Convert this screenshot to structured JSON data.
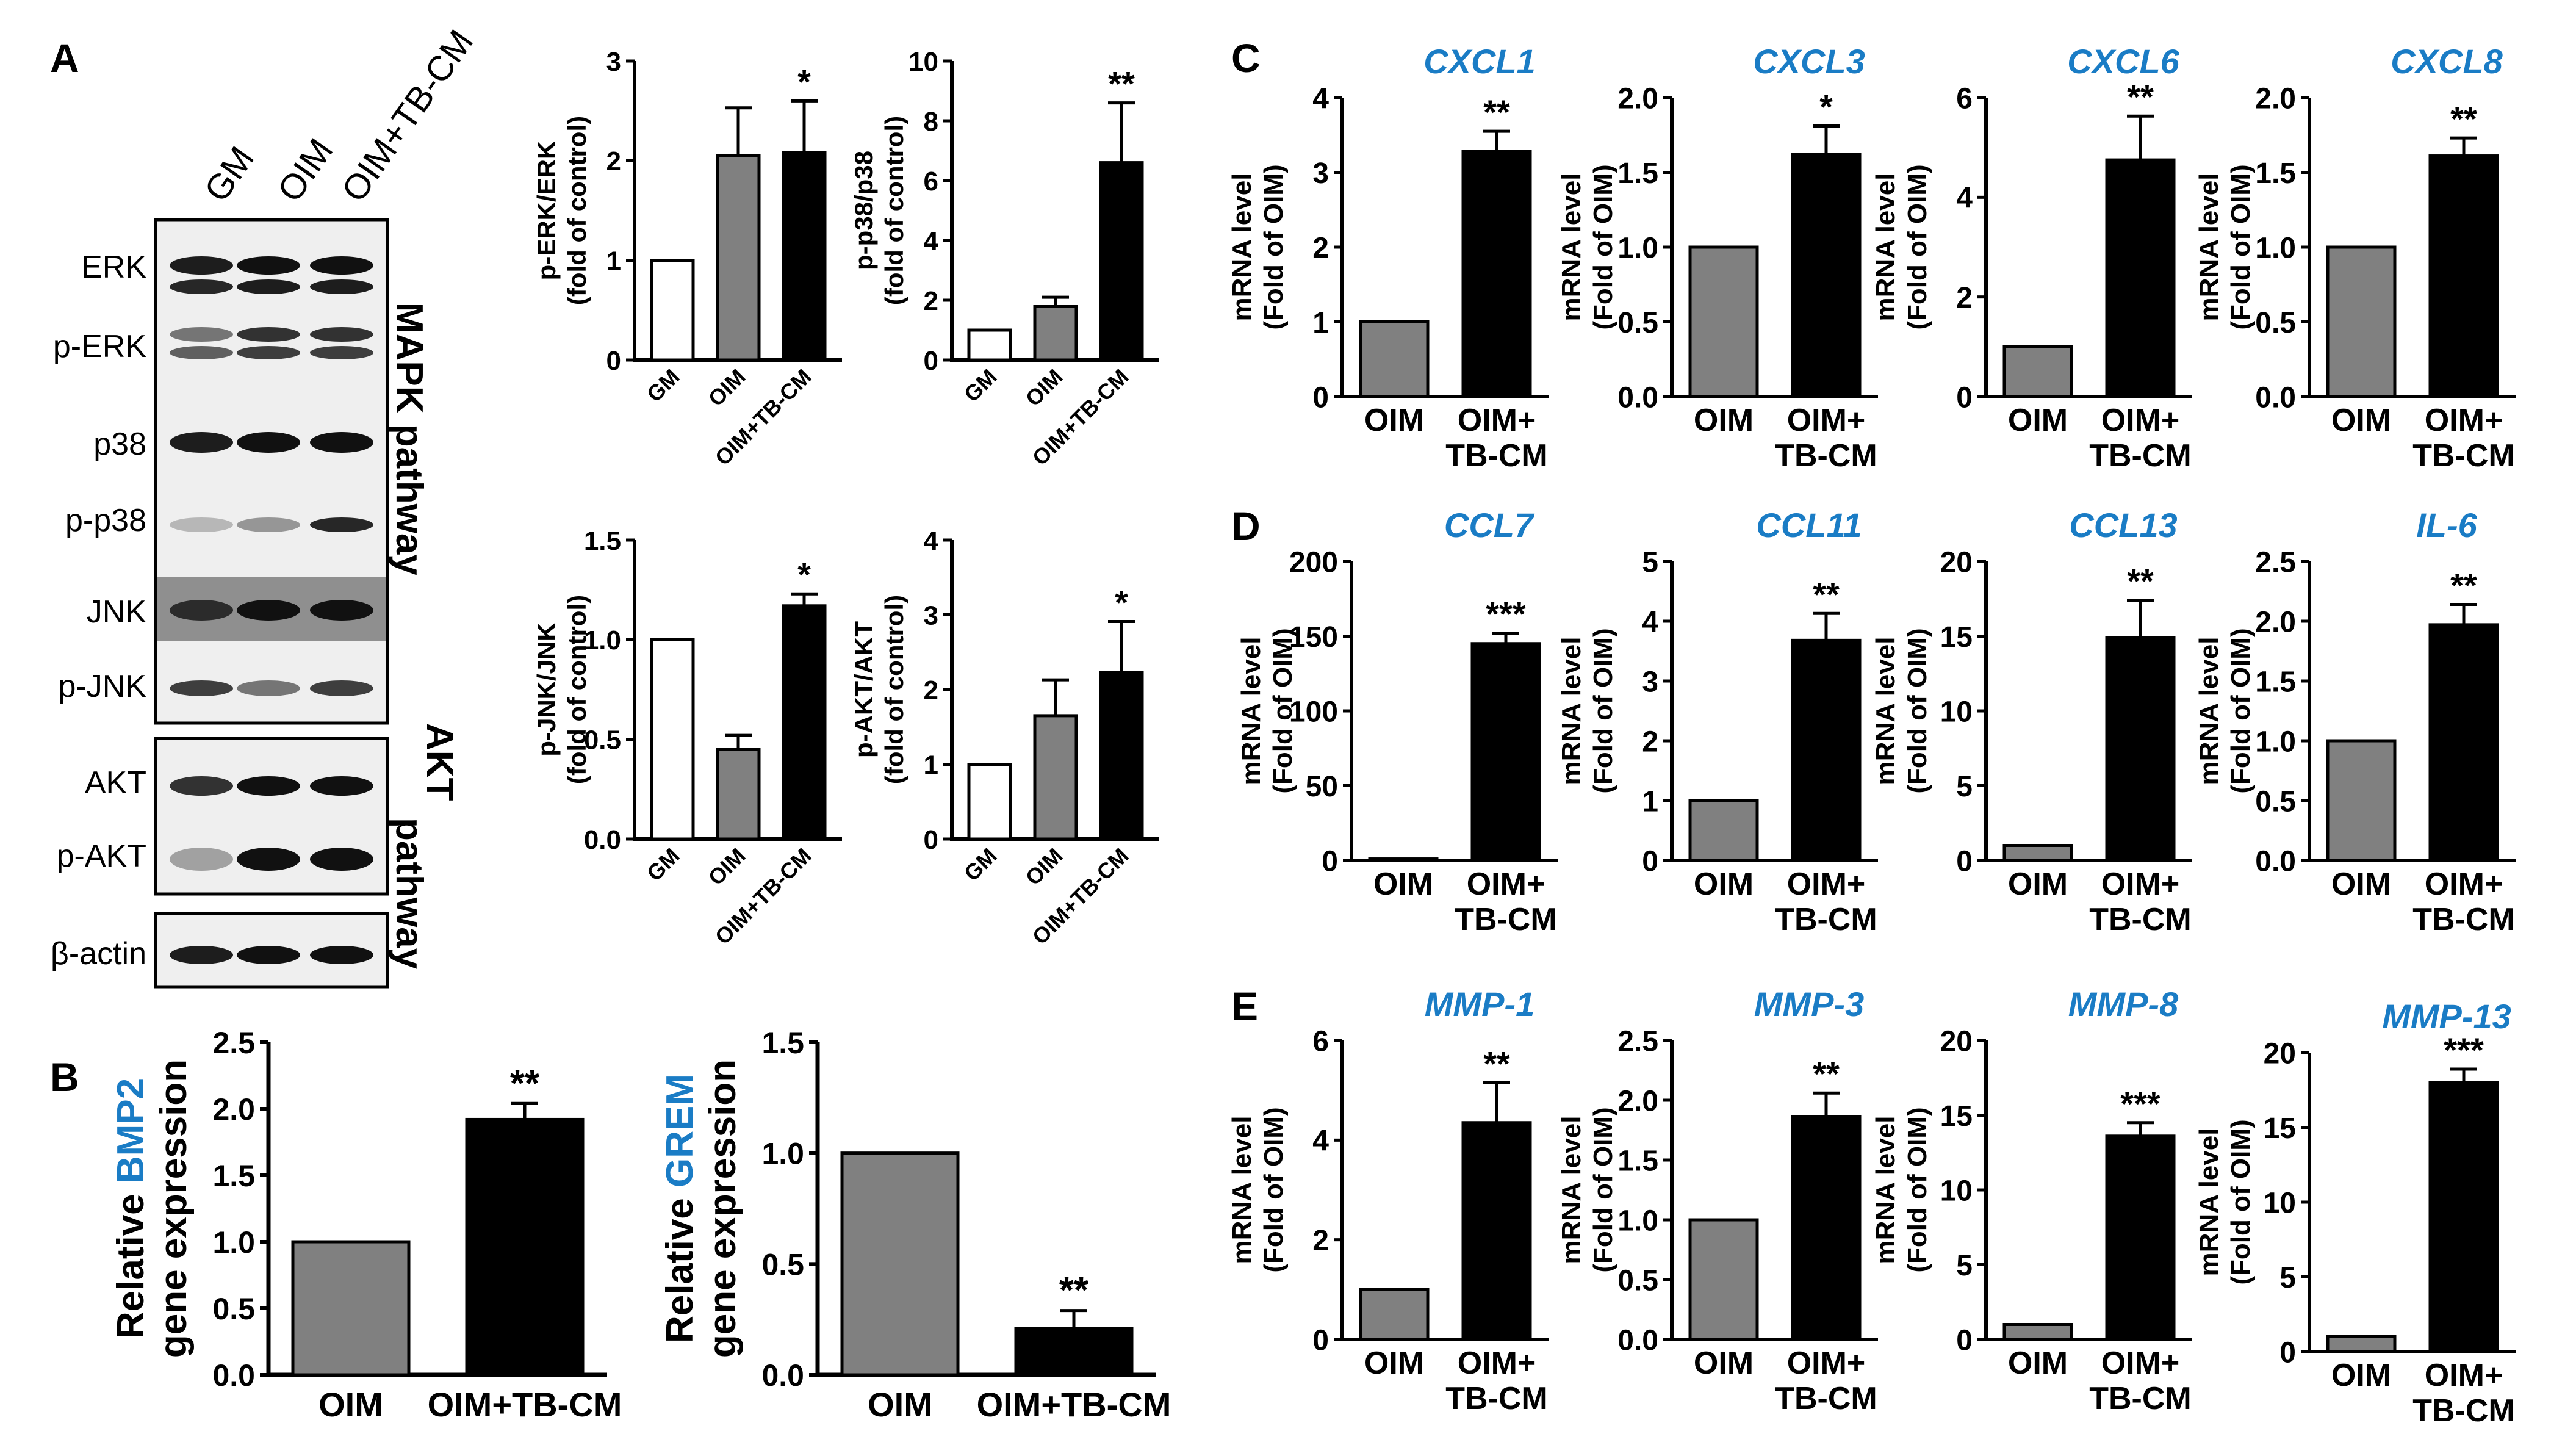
{
  "panels": {
    "A": "A",
    "B": "B",
    "C": "C",
    "D": "D",
    "E": "E"
  },
  "blot": {
    "lanes": [
      "GM",
      "OIM",
      "OIM+TB-CM"
    ],
    "bands": [
      "ERK",
      "p-ERK",
      "p38",
      "p-p38",
      "JNK",
      "p-JNK",
      "AKT",
      "p-AKT",
      "β-actin"
    ],
    "pathways": {
      "mapk": "MAPK pathway",
      "akt_line1": "AKT",
      "akt_line2": "pathway"
    }
  },
  "colors": {
    "GM": "#ffffff",
    "OIM": "#808080",
    "OIM+TB-CM": "#000000",
    "gene_title": "#1a7cc5"
  },
  "chart_data": [
    {
      "id": "A1",
      "type": "bar",
      "categories": [
        "GM",
        "OIM",
        "OIM+TB-CM"
      ],
      "values": [
        1.0,
        2.05,
        2.08
      ],
      "errors": [
        0,
        0.48,
        0.52
      ],
      "sig": [
        "",
        "",
        "*"
      ],
      "ylabel_lines": [
        "p-ERK/ERK",
        "(fold of control)"
      ],
      "ylim": [
        0,
        3
      ],
      "yticks": [
        0,
        1,
        2,
        3
      ],
      "tick_labels": [
        "0",
        "1",
        "2",
        "3"
      ],
      "fills": [
        "#ffffff",
        "#808080",
        "#000000"
      ],
      "rotated_x": true
    },
    {
      "id": "A2",
      "type": "bar",
      "categories": [
        "GM",
        "OIM",
        "OIM+TB-CM"
      ],
      "values": [
        1.0,
        1.8,
        6.6
      ],
      "errors": [
        0,
        0.3,
        2.0
      ],
      "sig": [
        "",
        "",
        "**"
      ],
      "ylabel_lines": [
        "p-p38/p38",
        "(fold of control)"
      ],
      "ylim": [
        0,
        10
      ],
      "yticks": [
        0,
        2,
        4,
        6,
        8,
        10
      ],
      "tick_labels": [
        "0",
        "2",
        "4",
        "6",
        "8",
        "10"
      ],
      "fills": [
        "#ffffff",
        "#808080",
        "#000000"
      ],
      "rotated_x": true
    },
    {
      "id": "A3",
      "type": "bar",
      "categories": [
        "GM",
        "OIM",
        "OIM+TB-CM"
      ],
      "values": [
        1.0,
        0.45,
        1.17
      ],
      "errors": [
        0,
        0.07,
        0.06
      ],
      "sig": [
        "",
        "",
        "*"
      ],
      "ylabel_lines": [
        "p-JNK/JNK",
        "(fold of control)"
      ],
      "ylim": [
        0,
        1.5
      ],
      "yticks": [
        0,
        0.5,
        1.0,
        1.5
      ],
      "tick_labels": [
        "0.0",
        "0.5",
        "1.0",
        "1.5"
      ],
      "fills": [
        "#ffffff",
        "#808080",
        "#000000"
      ],
      "rotated_x": true
    },
    {
      "id": "A4",
      "type": "bar",
      "categories": [
        "GM",
        "OIM",
        "OIM+TB-CM"
      ],
      "values": [
        1.0,
        1.65,
        2.23
      ],
      "errors": [
        0,
        0.48,
        0.68
      ],
      "sig": [
        "",
        "",
        "*"
      ],
      "ylabel_lines": [
        "p-AKT/AKT",
        "(fold of control)"
      ],
      "ylim": [
        0,
        4
      ],
      "yticks": [
        0,
        1,
        2,
        3,
        4
      ],
      "tick_labels": [
        "0",
        "1",
        "2",
        "3",
        "4"
      ],
      "fills": [
        "#ffffff",
        "#808080",
        "#000000"
      ],
      "rotated_x": true
    },
    {
      "id": "B1",
      "type": "bar",
      "categories": [
        "OIM",
        "OIM+TB-CM"
      ],
      "values": [
        1.0,
        1.92
      ],
      "errors": [
        0,
        0.12
      ],
      "sig": [
        "",
        "**"
      ],
      "ylabel_line1": [
        "Relative ",
        "BMP2"
      ],
      "ylabel_line2": "gene expression",
      "ylim": [
        0,
        2.5
      ],
      "yticks": [
        0,
        0.5,
        1.0,
        1.5,
        2.0,
        2.5
      ],
      "tick_labels": [
        "0.0",
        "0.5",
        "1.0",
        "1.5",
        "2.0",
        "2.5"
      ],
      "fills": [
        "#808080",
        "#000000"
      ]
    },
    {
      "id": "B2",
      "type": "bar",
      "categories": [
        "OIM",
        "OIM+TB-CM"
      ],
      "values": [
        1.0,
        0.21
      ],
      "errors": [
        0,
        0.08
      ],
      "sig": [
        "",
        "**"
      ],
      "ylabel_line1": [
        "Relative ",
        "GREM"
      ],
      "ylabel_line2": "gene expression",
      "ylim": [
        0,
        1.5
      ],
      "yticks": [
        0,
        0.5,
        1.0,
        1.5
      ],
      "tick_labels": [
        "0.0",
        "0.5",
        "1.0",
        "1.5"
      ],
      "fills": [
        "#808080",
        "#000000"
      ]
    },
    {
      "id": "C1",
      "type": "bar",
      "title": "CXCL1",
      "categories": [
        "OIM",
        "OIM+ TB-CM"
      ],
      "values": [
        1.0,
        3.28
      ],
      "errors": [
        0,
        0.27
      ],
      "sig": [
        "",
        "**"
      ],
      "ylabel_lines": [
        "mRNA level",
        "(Fold of OIM)"
      ],
      "ylim": [
        0,
        4
      ],
      "yticks": [
        0,
        1,
        2,
        3,
        4
      ],
      "tick_labels": [
        "0",
        "1",
        "2",
        "3",
        "4"
      ],
      "fills": [
        "#808080",
        "#000000"
      ]
    },
    {
      "id": "C2",
      "type": "bar",
      "title": "CXCL3",
      "categories": [
        "OIM",
        "OIM+ TB-CM"
      ],
      "values": [
        1.0,
        1.62
      ],
      "errors": [
        0,
        0.19
      ],
      "sig": [
        "",
        "*"
      ],
      "ylabel_lines": [
        "mRNA level",
        "(Fold of OIM)"
      ],
      "ylim": [
        0,
        2.0
      ],
      "yticks": [
        0,
        0.5,
        1.0,
        1.5,
        2.0
      ],
      "tick_labels": [
        "0.0",
        "0.5",
        "1.0",
        "1.5",
        "2.0"
      ],
      "fills": [
        "#808080",
        "#000000"
      ]
    },
    {
      "id": "C3",
      "type": "bar",
      "title": "CXCL6",
      "categories": [
        "OIM",
        "OIM+ TB-CM"
      ],
      "values": [
        1.0,
        4.75
      ],
      "errors": [
        0,
        0.88
      ],
      "sig": [
        "",
        "**"
      ],
      "ylabel_lines": [
        "mRNA level",
        "(Fold of OIM)"
      ],
      "ylim": [
        0,
        6
      ],
      "yticks": [
        0,
        2,
        4,
        6
      ],
      "tick_labels": [
        "0",
        "2",
        "4",
        "6"
      ],
      "fills": [
        "#808080",
        "#000000"
      ]
    },
    {
      "id": "C4",
      "type": "bar",
      "title": "CXCL8",
      "categories": [
        "OIM",
        "OIM+ TB-CM"
      ],
      "values": [
        1.0,
        1.61
      ],
      "errors": [
        0,
        0.12
      ],
      "sig": [
        "",
        "**"
      ],
      "ylabel_lines": [
        "mRNA level",
        "(Fold of OIM)"
      ],
      "ylim": [
        0,
        2.0
      ],
      "yticks": [
        0,
        0.5,
        1.0,
        1.5,
        2.0
      ],
      "tick_labels": [
        "0.0",
        "0.5",
        "1.0",
        "1.5",
        "2.0"
      ],
      "fills": [
        "#808080",
        "#000000"
      ]
    },
    {
      "id": "D1",
      "type": "bar",
      "title": "CCL7",
      "categories": [
        "OIM",
        "OIM+ TB-CM"
      ],
      "values": [
        1.0,
        145
      ],
      "errors": [
        0,
        7
      ],
      "sig": [
        "",
        "***"
      ],
      "ylabel_lines": [
        "mRNA level",
        "(Fold of OIM)"
      ],
      "ylim": [
        0,
        200
      ],
      "yticks": [
        0,
        50,
        100,
        150,
        200
      ],
      "tick_labels": [
        "0",
        "50",
        "100",
        "150",
        "200"
      ],
      "fills": [
        "#808080",
        "#000000"
      ]
    },
    {
      "id": "D2",
      "type": "bar",
      "title": "CCL11",
      "categories": [
        "OIM",
        "OIM+ TB-CM"
      ],
      "values": [
        1.0,
        3.68
      ],
      "errors": [
        0,
        0.45
      ],
      "sig": [
        "",
        "**"
      ],
      "ylabel_lines": [
        "mRNA level",
        "(Fold of OIM)"
      ],
      "ylim": [
        0,
        5
      ],
      "yticks": [
        0,
        1,
        2,
        3,
        4,
        5
      ],
      "tick_labels": [
        "0",
        "1",
        "2",
        "3",
        "4",
        "5"
      ],
      "fills": [
        "#808080",
        "#000000"
      ]
    },
    {
      "id": "D3",
      "type": "bar",
      "title": "CCL13",
      "categories": [
        "OIM",
        "OIM+ TB-CM"
      ],
      "values": [
        1.0,
        14.9
      ],
      "errors": [
        0,
        2.5
      ],
      "sig": [
        "",
        "**"
      ],
      "ylabel_lines": [
        "mRNA level",
        "(Fold of OIM)"
      ],
      "ylim": [
        0,
        20
      ],
      "yticks": [
        0,
        5,
        10,
        15,
        20
      ],
      "tick_labels": [
        "0",
        "5",
        "10",
        "15",
        "20"
      ],
      "fills": [
        "#808080",
        "#000000"
      ]
    },
    {
      "id": "D4",
      "type": "bar",
      "title": "IL-6",
      "categories": [
        "OIM",
        "OIM+ TB-CM"
      ],
      "values": [
        1.0,
        1.97
      ],
      "errors": [
        0,
        0.17
      ],
      "sig": [
        "",
        "**"
      ],
      "ylabel_lines": [
        "mRNA level",
        "(Fold of OIM)"
      ],
      "ylim": [
        0,
        2.5
      ],
      "yticks": [
        0,
        0.5,
        1.0,
        1.5,
        2.0,
        2.5
      ],
      "tick_labels": [
        "0.0",
        "0.5",
        "1.0",
        "1.5",
        "2.0",
        "2.5"
      ],
      "fills": [
        "#808080",
        "#000000"
      ]
    },
    {
      "id": "E1",
      "type": "bar",
      "title": "MMP-1",
      "categories": [
        "OIM",
        "OIM+ TB-CM"
      ],
      "values": [
        1.0,
        4.35
      ],
      "errors": [
        0,
        0.8
      ],
      "sig": [
        "",
        "**"
      ],
      "ylabel_lines": [
        "mRNA level",
        "(Fold of OIM)"
      ],
      "ylim": [
        0,
        6
      ],
      "yticks": [
        0,
        2,
        4,
        6
      ],
      "tick_labels": [
        "0",
        "2",
        "4",
        "6"
      ],
      "fills": [
        "#808080",
        "#000000"
      ]
    },
    {
      "id": "E2",
      "type": "bar",
      "title": "MMP-3",
      "categories": [
        "OIM",
        "OIM+ TB-CM"
      ],
      "values": [
        1.0,
        1.86
      ],
      "errors": [
        0,
        0.2
      ],
      "sig": [
        "",
        "**"
      ],
      "ylabel_lines": [
        "mRNA level",
        "(Fold of OIM)"
      ],
      "ylim": [
        0,
        2.5
      ],
      "yticks": [
        0,
        0.5,
        1.0,
        1.5,
        2.0,
        2.5
      ],
      "tick_labels": [
        "0.0",
        "0.5",
        "1.0",
        "1.5",
        "2.0",
        "2.5"
      ],
      "fills": [
        "#808080",
        "#000000"
      ]
    },
    {
      "id": "E3",
      "type": "bar",
      "title": "MMP-8",
      "categories": [
        "OIM",
        "OIM+ TB-CM"
      ],
      "values": [
        1.0,
        13.6
      ],
      "errors": [
        0,
        0.9
      ],
      "sig": [
        "",
        "***"
      ],
      "ylabel_lines": [
        "mRNA level",
        "(Fold of OIM)"
      ],
      "ylim": [
        0,
        20
      ],
      "yticks": [
        0,
        5,
        10,
        15,
        20
      ],
      "tick_labels": [
        "0",
        "5",
        "10",
        "15",
        "20"
      ],
      "fills": [
        "#808080",
        "#000000"
      ]
    },
    {
      "id": "E4",
      "type": "bar",
      "title": "MMP-13",
      "categories": [
        "OIM",
        "OIM+ TB-CM"
      ],
      "values": [
        1.0,
        18.0
      ],
      "errors": [
        0,
        0.9
      ],
      "sig": [
        "",
        "***"
      ],
      "ylabel_lines": [
        "mRNA level",
        "(Fold of OIM)"
      ],
      "ylim": [
        0,
        20
      ],
      "yticks": [
        0,
        5,
        10,
        15,
        20
      ],
      "tick_labels": [
        "0",
        "5",
        "10",
        "15",
        "20"
      ],
      "fills": [
        "#808080",
        "#000000"
      ]
    }
  ]
}
